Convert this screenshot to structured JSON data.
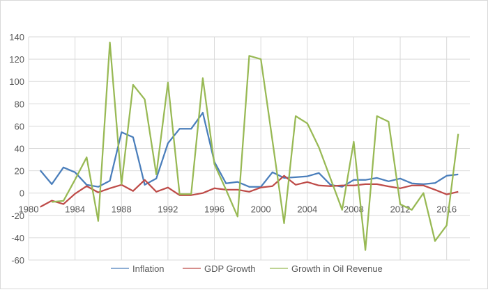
{
  "chart_data": {
    "type": "line",
    "title": "",
    "xlabel": "",
    "ylabel": "",
    "x": [
      1981,
      1982,
      1983,
      1984,
      1985,
      1986,
      1987,
      1988,
      1989,
      1990,
      1991,
      1992,
      1993,
      1994,
      1995,
      1996,
      1997,
      1998,
      1999,
      2000,
      2001,
      2002,
      2003,
      2004,
      2005,
      2006,
      2007,
      2008,
      2009,
      2010,
      2011,
      2012,
      2013,
      2014,
      2015,
      2016,
      2017
    ],
    "xlim": [
      1980,
      2018
    ],
    "x_tick_labels": [
      "1980",
      "1984",
      "1988",
      "1992",
      "1996",
      "2000",
      "2004",
      "2008",
      "2012",
      "2016"
    ],
    "x_ticks": [
      1980,
      1984,
      1988,
      1992,
      1996,
      2000,
      2004,
      2008,
      2012,
      2016
    ],
    "ylim": [
      -60,
      140
    ],
    "y_ticks": [
      -60,
      -40,
      -20,
      0,
      20,
      40,
      60,
      80,
      100,
      120,
      140
    ],
    "y_tick_labels": [
      "-60",
      "-40",
      "-20",
      "0",
      "20",
      "40",
      "60",
      "80",
      "100",
      "120",
      "140"
    ],
    "grid": true,
    "legend_position": "bottom",
    "series": [
      {
        "name": "Inflation",
        "color": "#4a7ebb",
        "values": [
          20.4,
          8,
          23,
          18.6,
          7.4,
          5.6,
          11,
          54.5,
          50,
          7.4,
          13,
          44.6,
          57.6,
          57.6,
          72,
          28,
          8.7,
          10,
          5.6,
          5.6,
          18.6,
          13.6,
          14.2,
          15,
          18,
          7.4,
          5.6,
          11.8,
          11.8,
          13.6,
          10.5,
          13,
          8.7,
          8,
          9,
          15.5,
          16.7
        ]
      },
      {
        "name": "GDP Growth",
        "color": "#be4b48",
        "values": [
          -12.4,
          -6.8,
          -9.9,
          -0.6,
          6.2,
          0.6,
          4.3,
          7.4,
          1.9,
          11.8,
          1.2,
          5,
          -1.9,
          -1.9,
          0,
          4.3,
          3,
          3,
          1.2,
          5,
          6.2,
          15.5,
          7.4,
          9.9,
          6.8,
          6.2,
          6.8,
          6.8,
          8,
          8,
          6,
          4.3,
          6.8,
          6.8,
          3,
          -1.2,
          1.2
        ]
      },
      {
        "name": "Growth in Oil Revenue",
        "color": "#98b954",
        "values": [
          null,
          -8,
          -7,
          12,
          32,
          -25,
          135,
          8,
          97,
          84,
          16.7,
          99,
          -1,
          -1,
          103,
          26,
          3,
          -21,
          123,
          120,
          47,
          -27,
          69,
          62.5,
          41,
          13,
          -15,
          46,
          -51,
          69,
          64,
          -10,
          -15,
          0,
          -43,
          -29,
          53
        ]
      }
    ]
  }
}
